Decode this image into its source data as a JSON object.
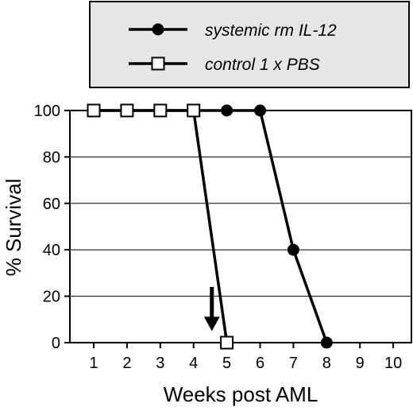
{
  "chart_data": {
    "type": "line",
    "xlabel": "Weeks post AML",
    "ylabel": "% Survival",
    "xlim": [
      0.5,
      10.5
    ],
    "ylim": [
      0,
      100
    ],
    "x_ticks": [
      1,
      2,
      3,
      4,
      5,
      6,
      7,
      8,
      9,
      10
    ],
    "y_ticks": [
      0,
      20,
      40,
      60,
      80,
      100
    ],
    "grid": "horizontal",
    "legend_placement": "top",
    "legend_background": "#e6e6e6",
    "series": [
      {
        "name": "systemic rm IL-12",
        "marker": "filled-circle",
        "color": "#000000",
        "points": [
          {
            "x": 1,
            "y": 100
          },
          {
            "x": 2,
            "y": 100
          },
          {
            "x": 3,
            "y": 100
          },
          {
            "x": 4,
            "y": 100
          },
          {
            "x": 5,
            "y": 100
          },
          {
            "x": 6,
            "y": 100
          },
          {
            "x": 7,
            "y": 40
          },
          {
            "x": 8,
            "y": 0
          }
        ]
      },
      {
        "name": "control 1 x PBS",
        "marker": "open-square",
        "color": "#000000",
        "points": [
          {
            "x": 1,
            "y": 100
          },
          {
            "x": 2,
            "y": 100
          },
          {
            "x": 3,
            "y": 100
          },
          {
            "x": 4,
            "y": 100
          },
          {
            "x": 5,
            "y": 0
          }
        ]
      }
    ],
    "annotations": [
      {
        "type": "arrow-down",
        "x": 4.55,
        "y_from": 24,
        "y_to": 5
      }
    ]
  }
}
